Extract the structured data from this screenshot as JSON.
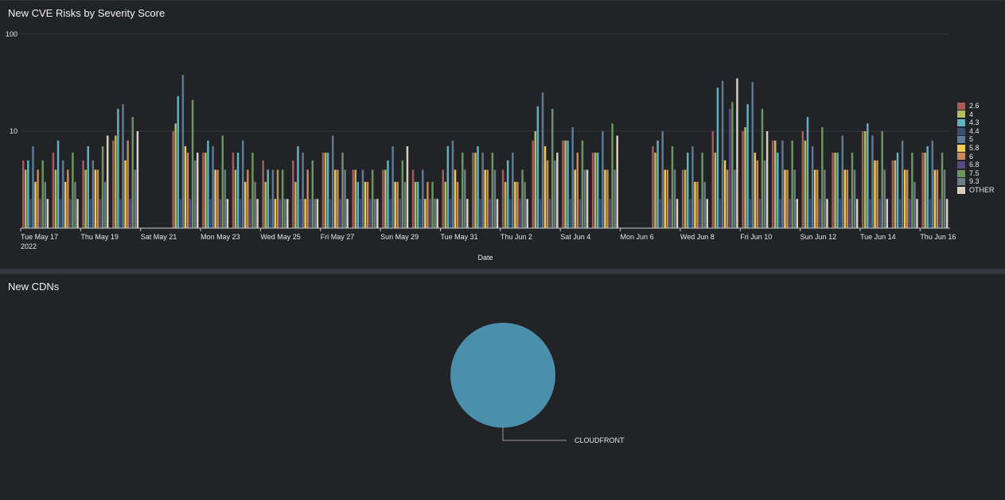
{
  "panels": {
    "cve_title": "New CVE Risks by Severity Score",
    "cdn_title": "New CDNs"
  },
  "chart_data": [
    {
      "type": "bar",
      "title": "New CVE Risks by Severity Score",
      "xlabel": "Date",
      "ylabel": "",
      "yscale": "log",
      "ylim": [
        1,
        100
      ],
      "y_tick_labels": [
        "10",
        "100"
      ],
      "x_tick_labels": [
        "Tue May 17",
        "Thu May 19",
        "Sat May 21",
        "Mon May 23",
        "Wed May 25",
        "Fri May 27",
        "Sun May 29",
        "Tue May 31",
        "Thu Jun 2",
        "Sat Jun 4",
        "Mon Jun 6",
        "Wed Jun 8",
        "Fri Jun 10",
        "Sun Jun 12",
        "Tue Jun 14",
        "Thu Jun 16"
      ],
      "x_year_label": "2022",
      "legend_position": "right",
      "categories": [
        "May 17",
        "May 18",
        "May 19",
        "May 20",
        "May 21",
        "May 22",
        "May 23",
        "May 24",
        "May 25",
        "May 26",
        "May 27",
        "May 28",
        "May 29",
        "May 30",
        "May 31",
        "Jun 1",
        "Jun 2",
        "Jun 3",
        "Jun 4",
        "Jun 5",
        "Jun 6",
        "Jun 7",
        "Jun 8",
        "Jun 9",
        "Jun 10",
        "Jun 11",
        "Jun 12",
        "Jun 13",
        "Jun 14",
        "Jun 15",
        "Jun 16"
      ],
      "series": [
        {
          "name": "2.6",
          "color": "#a65c5a",
          "values": [
            5,
            6,
            5,
            8,
            0,
            10,
            6,
            6,
            5,
            5,
            6,
            4,
            4,
            4,
            4,
            6,
            4,
            8,
            8,
            6,
            0,
            7,
            4,
            10,
            10,
            8,
            10,
            6,
            10,
            5,
            6
          ]
        },
        {
          "name": "4",
          "color": "#b5bd61",
          "values": [
            4,
            4,
            4,
            9,
            0,
            12,
            6,
            4,
            3,
            3,
            6,
            4,
            4,
            3,
            3,
            6,
            3,
            10,
            8,
            6,
            0,
            6,
            4,
            6,
            11,
            8,
            8,
            6,
            10,
            5,
            6
          ]
        },
        {
          "name": "4.3",
          "color": "#62b2c4",
          "values": [
            5,
            8,
            7,
            17,
            0,
            23,
            8,
            6,
            4,
            7,
            6,
            3,
            5,
            3,
            7,
            7,
            5,
            18,
            8,
            6,
            0,
            8,
            6,
            28,
            19,
            6,
            14,
            6,
            12,
            6,
            7
          ]
        },
        {
          "name": "4.4",
          "color": "#3c4f72",
          "values": [
            2,
            2,
            2,
            2,
            0,
            2,
            2,
            2,
            2,
            2,
            2,
            2,
            2,
            2,
            2,
            2,
            2,
            2,
            2,
            2,
            0,
            2,
            2,
            2,
            2,
            2,
            2,
            2,
            2,
            2,
            2
          ]
        },
        {
          "name": "5",
          "color": "#5e7a94",
          "values": [
            7,
            5,
            5,
            19,
            0,
            38,
            7,
            8,
            4,
            6,
            9,
            4,
            7,
            4,
            8,
            6,
            6,
            25,
            11,
            10,
            0,
            10,
            7,
            33,
            32,
            8,
            7,
            9,
            9,
            8,
            8
          ]
        },
        {
          "name": "5.8",
          "color": "#f2cb53",
          "values": [
            3,
            3,
            4,
            5,
            0,
            7,
            4,
            3,
            2,
            2,
            4,
            3,
            3,
            2,
            4,
            4,
            3,
            7,
            4,
            4,
            0,
            4,
            3,
            5,
            6,
            4,
            4,
            4,
            5,
            4,
            4
          ]
        },
        {
          "name": "6",
          "color": "#c58a5f",
          "values": [
            4,
            4,
            4,
            8,
            0,
            6,
            4,
            4,
            4,
            4,
            4,
            3,
            3,
            3,
            3,
            4,
            3,
            5,
            6,
            4,
            0,
            4,
            3,
            4,
            5,
            4,
            4,
            4,
            5,
            4,
            4
          ]
        },
        {
          "name": "6.8",
          "color": "#5a4a80",
          "values": [
            2,
            2,
            2,
            2,
            0,
            2,
            2,
            2,
            2,
            2,
            2,
            2,
            2,
            2,
            2,
            2,
            2,
            2,
            2,
            2,
            0,
            2,
            2,
            17,
            2,
            2,
            2,
            2,
            2,
            2,
            2
          ]
        },
        {
          "name": "7.5",
          "color": "#6b9660",
          "values": [
            5,
            6,
            7,
            14,
            0,
            21,
            9,
            6,
            4,
            5,
            6,
            4,
            5,
            3,
            6,
            6,
            4,
            17,
            8,
            12,
            0,
            7,
            6,
            20,
            17,
            8,
            11,
            6,
            10,
            6,
            6
          ]
        },
        {
          "name": "9.3",
          "color": "#6e7c86",
          "values": [
            3,
            3,
            3,
            4,
            0,
            5,
            4,
            3,
            2,
            2,
            4,
            2,
            3,
            2,
            4,
            4,
            3,
            5,
            4,
            4,
            0,
            4,
            3,
            4,
            5,
            4,
            4,
            4,
            4,
            3,
            4
          ]
        },
        {
          "name": "OTHER",
          "color": "#d9cfc2",
          "values": [
            2,
            2,
            9,
            10,
            0,
            6,
            2,
            2,
            2,
            2,
            2,
            2,
            7,
            2,
            2,
            2,
            2,
            6,
            4,
            9,
            0,
            2,
            2,
            35,
            10,
            2,
            2,
            2,
            2,
            2,
            2
          ]
        }
      ]
    },
    {
      "type": "pie",
      "title": "New CDNs",
      "slices": [
        {
          "label": "CLOUDFRONT",
          "value": 100,
          "color": "#4a8fab"
        }
      ]
    }
  ]
}
